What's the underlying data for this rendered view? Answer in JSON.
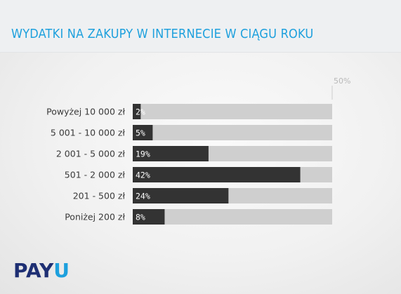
{
  "header": {
    "title": "WYDATKI NA ZAKUPY W INTERNECIE W CIĄGU ROKU"
  },
  "logo": {
    "part1": "PAY",
    "part2": "U"
  },
  "colors": {
    "bar": "#333333",
    "track": "#cfcfcf",
    "title": "#1da0dd",
    "logo_dark": "#1e2f73",
    "logo_accent": "#1da0dd"
  },
  "chart_data": {
    "type": "bar",
    "orientation": "horizontal",
    "title": "WYDATKI NA ZAKUPY W INTERNECIE W CIĄGU ROKU",
    "categories": [
      "Powyżej 10 000 zł",
      "5 001 - 10 000 zł",
      "2 001 - 5 000 zł",
      "501 - 2 000 zł",
      "201 - 500 zł",
      "Poniżej 200 zł"
    ],
    "values": [
      2,
      5,
      19,
      42,
      24,
      8
    ],
    "value_labels": [
      "2%",
      "5%",
      "19%",
      "42%",
      "24%",
      "8%"
    ],
    "xlim": [
      0,
      50
    ],
    "tick_label": "50%",
    "grid": false,
    "legend": "none"
  }
}
